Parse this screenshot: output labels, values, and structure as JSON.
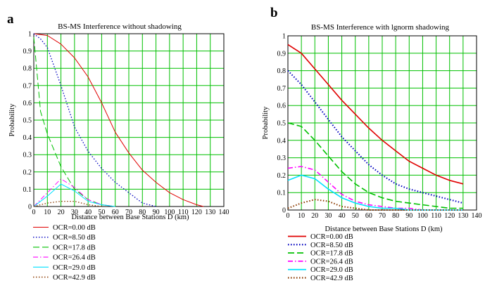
{
  "chart_data": [
    {
      "panel": "a",
      "type": "line",
      "title": "BS-MS Interference without shadowing",
      "xlabel": "Distance between Base Stations D (km)",
      "ylabel": "Probability",
      "xlim": [
        0,
        140
      ],
      "ylim": [
        0,
        1
      ],
      "xticks": [
        "0",
        "10",
        "20",
        "30",
        "40",
        "50",
        "60",
        "70",
        "80",
        "90",
        "100",
        "110",
        "120",
        "130",
        "140"
      ],
      "yticks": [
        "0",
        "0.1",
        "0.2",
        "0.3",
        "0.4",
        "0.5",
        "0.6",
        "0.7",
        "0.8",
        "0.9",
        "1"
      ],
      "grid": true,
      "legend": "below",
      "series": [
        {
          "name": "OCR=0.00 dB",
          "color": "#e00000",
          "dash": "solid",
          "x": [
            0,
            10,
            20,
            30,
            40,
            50,
            60,
            70,
            80,
            90,
            100,
            110,
            120,
            125
          ],
          "y": [
            1.0,
            0.99,
            0.94,
            0.86,
            0.75,
            0.6,
            0.43,
            0.31,
            0.21,
            0.14,
            0.08,
            0.04,
            0.01,
            0.0
          ]
        },
        {
          "name": "OCR=8.50 dB",
          "color": "#0000c0",
          "dash": "dotted",
          "x": [
            0,
            5,
            10,
            20,
            30,
            40,
            50,
            60,
            70,
            80,
            90
          ],
          "y": [
            1.0,
            0.97,
            0.92,
            0.7,
            0.46,
            0.32,
            0.22,
            0.14,
            0.08,
            0.02,
            0.0
          ]
        },
        {
          "name": "OCR=17.8 dB",
          "color": "#00c000",
          "dash": "longdash",
          "x": [
            0,
            5,
            10,
            20,
            30,
            40,
            50,
            60
          ],
          "y": [
            0.98,
            0.55,
            0.42,
            0.23,
            0.1,
            0.04,
            0.01,
            0.0
          ]
        },
        {
          "name": "OCR=26.4 dB",
          "color": "#ff00ff",
          "dash": "dashdot",
          "x": [
            0,
            10,
            20,
            30,
            40,
            50,
            60
          ],
          "y": [
            0.0,
            0.08,
            0.16,
            0.11,
            0.04,
            0.01,
            0.0
          ]
        },
        {
          "name": "OCR=29.0 dB",
          "color": "#00e0ff",
          "dash": "solid",
          "x": [
            0,
            10,
            20,
            30,
            40,
            50,
            60
          ],
          "y": [
            0.0,
            0.06,
            0.13,
            0.09,
            0.03,
            0.01,
            0.0
          ]
        },
        {
          "name": "OCR=42.9 dB",
          "color": "#8b3a00",
          "dash": "dotted",
          "x": [
            0,
            10,
            20,
            30,
            40,
            50
          ],
          "y": [
            0.0,
            0.02,
            0.03,
            0.03,
            0.01,
            0.0
          ]
        }
      ]
    },
    {
      "panel": "b",
      "type": "line",
      "title": "BS-MS Interference with lgnorm shadowing",
      "xlabel": "Distance between Base Stations D (km)",
      "ylabel": "Probability",
      "xlim": [
        0,
        140
      ],
      "ylim": [
        0,
        1
      ],
      "xticks": [
        "0",
        "10",
        "20",
        "30",
        "40",
        "50",
        "60",
        "70",
        "80",
        "90",
        "100",
        "110",
        "120",
        "130",
        "140"
      ],
      "yticks": [
        "0",
        "0.1",
        "0.2",
        "0.3",
        "0.4",
        "0.5",
        "0.6",
        "0.7",
        "0.8",
        "0.9",
        "1"
      ],
      "grid": true,
      "legend": "below",
      "series": [
        {
          "name": "OCR=0.00 dB",
          "color": "#e00000",
          "dash": "solid",
          "x": [
            0,
            10,
            20,
            30,
            40,
            50,
            60,
            70,
            80,
            90,
            100,
            110,
            120,
            130
          ],
          "y": [
            0.95,
            0.9,
            0.81,
            0.72,
            0.63,
            0.55,
            0.47,
            0.4,
            0.34,
            0.28,
            0.24,
            0.2,
            0.17,
            0.15
          ]
        },
        {
          "name": "OCR=8.50 dB",
          "color": "#0000c0",
          "dash": "dotted",
          "x": [
            0,
            10,
            20,
            30,
            40,
            50,
            60,
            70,
            80,
            90,
            100,
            110,
            120,
            130
          ],
          "y": [
            0.8,
            0.72,
            0.62,
            0.52,
            0.42,
            0.34,
            0.26,
            0.2,
            0.15,
            0.12,
            0.1,
            0.08,
            0.06,
            0.04
          ]
        },
        {
          "name": "OCR=17.8 dB",
          "color": "#00c000",
          "dash": "longdash",
          "x": [
            0,
            10,
            20,
            30,
            40,
            50,
            60,
            70,
            80,
            90,
            100,
            110,
            120,
            130
          ],
          "y": [
            0.5,
            0.48,
            0.4,
            0.31,
            0.22,
            0.15,
            0.1,
            0.07,
            0.05,
            0.04,
            0.03,
            0.02,
            0.01,
            0.01
          ]
        },
        {
          "name": "OCR=26.4 dB",
          "color": "#ff00ff",
          "dash": "dashdot",
          "x": [
            0,
            10,
            20,
            30,
            40,
            50,
            60,
            70,
            80,
            90,
            100,
            110,
            120,
            130
          ],
          "y": [
            0.24,
            0.25,
            0.23,
            0.16,
            0.09,
            0.05,
            0.03,
            0.02,
            0.01,
            0.01,
            0.0,
            0.0,
            0.0,
            0.0
          ]
        },
        {
          "name": "OCR=29.0 dB",
          "color": "#00e0ff",
          "dash": "solid",
          "x": [
            0,
            10,
            20,
            30,
            40,
            50,
            60,
            70,
            80,
            90,
            100,
            110,
            120,
            130
          ],
          "y": [
            0.17,
            0.2,
            0.18,
            0.12,
            0.07,
            0.04,
            0.02,
            0.01,
            0.01,
            0.0,
            0.0,
            0.0,
            0.0,
            0.0
          ]
        },
        {
          "name": "OCR=42.9 dB",
          "color": "#8b3a00",
          "dash": "dotted",
          "x": [
            0,
            10,
            20,
            30,
            40,
            50,
            60,
            70,
            80,
            90,
            100,
            110,
            120,
            130
          ],
          "y": [
            0.01,
            0.04,
            0.06,
            0.05,
            0.02,
            0.01,
            0.0,
            0.0,
            0.0,
            0.0,
            0.0,
            0.0,
            0.0,
            0.0
          ]
        }
      ]
    }
  ]
}
